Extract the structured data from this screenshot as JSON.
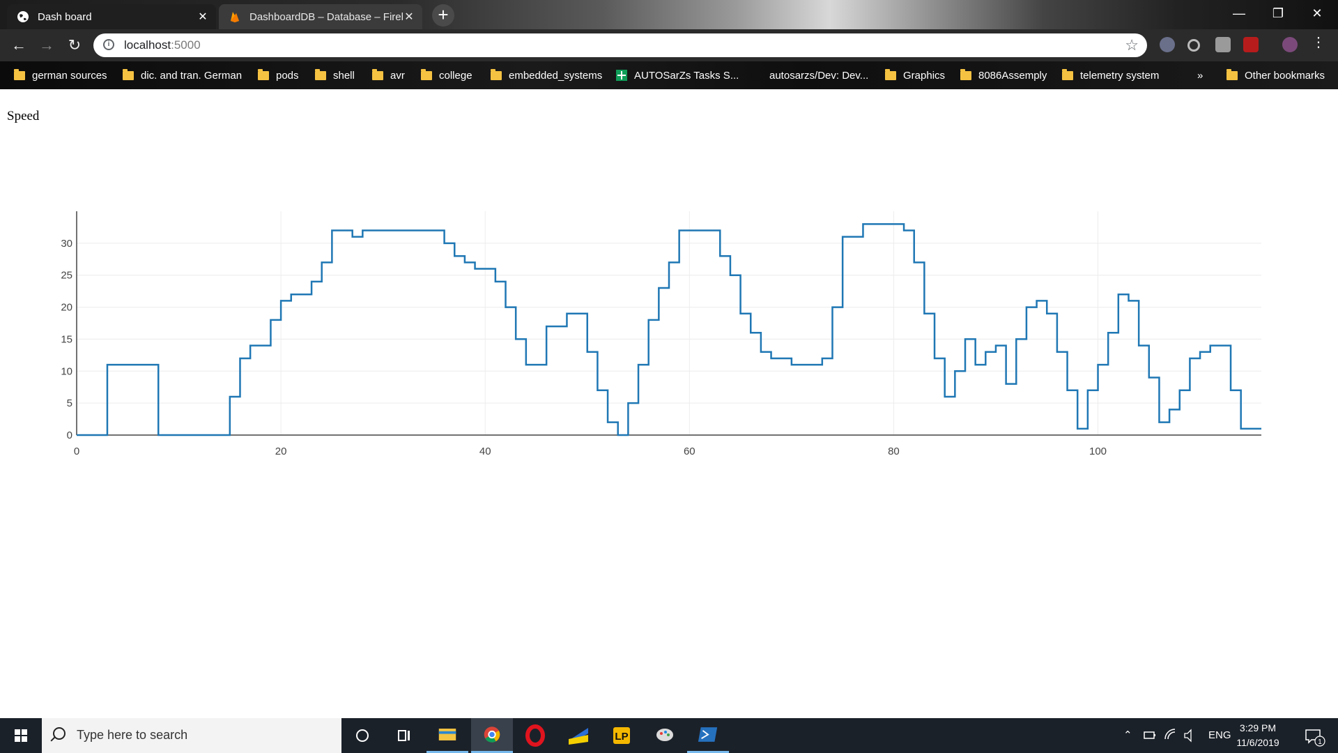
{
  "browser": {
    "tabs": [
      {
        "title": "Dash board",
        "active": true,
        "icon": "globe-icon"
      },
      {
        "title": "DashboardDB – Database – Fireb",
        "active": false,
        "icon": "firebase-icon"
      }
    ],
    "new_tab_symbol": "+",
    "close_symbol": "✕",
    "window_controls": {
      "minimize": "—",
      "restore": "❐",
      "close": "✕"
    },
    "nav": {
      "back": "←",
      "forward": "→",
      "reload": "↻"
    },
    "address": {
      "host": "localhost",
      "port": ":5000"
    },
    "bookmark_star": "☆",
    "bookmarks": [
      {
        "label": "german sources",
        "icon": "folder-icon"
      },
      {
        "label": "dic. and tran. German",
        "icon": "folder-icon"
      },
      {
        "label": "pods",
        "icon": "folder-icon"
      },
      {
        "label": "shell",
        "icon": "folder-icon"
      },
      {
        "label": "avr",
        "icon": "folder-icon"
      },
      {
        "label": "college",
        "icon": "folder-icon"
      },
      {
        "label": "embedded_systems",
        "icon": "folder-icon"
      },
      {
        "label": "AUTOSarZs Tasks S...",
        "icon": "sheets-icon"
      },
      {
        "label": "autosarzs/Dev: Dev...",
        "icon": "github-icon"
      },
      {
        "label": "Graphics",
        "icon": "folder-icon"
      },
      {
        "label": "8086Assemply",
        "icon": "folder-icon"
      },
      {
        "label": "telemetry system",
        "icon": "folder-icon"
      }
    ],
    "bookmarks_overflow": "»",
    "other_bookmarks": "Other bookmarks"
  },
  "page": {
    "title": "Speed"
  },
  "chart_data": {
    "type": "line",
    "line_shape": "step",
    "color": "#1f77b4",
    "xlim": [
      0,
      116
    ],
    "ylim": [
      0,
      35
    ],
    "xticks": [
      0,
      20,
      40,
      60,
      80,
      100
    ],
    "yticks": [
      0,
      5,
      10,
      15,
      20,
      25,
      30
    ],
    "grid": true,
    "x": [
      0,
      1,
      2,
      3,
      4,
      5,
      6,
      7,
      8,
      9,
      10,
      11,
      12,
      13,
      14,
      15,
      16,
      17,
      18,
      19,
      20,
      21,
      22,
      23,
      24,
      25,
      26,
      27,
      28,
      29,
      30,
      31,
      32,
      33,
      34,
      35,
      36,
      37,
      38,
      39,
      40,
      41,
      42,
      43,
      44,
      45,
      46,
      47,
      48,
      49,
      50,
      51,
      52,
      53,
      54,
      55,
      56,
      57,
      58,
      59,
      60,
      61,
      62,
      63,
      64,
      65,
      66,
      67,
      68,
      69,
      70,
      71,
      72,
      73,
      74,
      75,
      76,
      77,
      78,
      79,
      80,
      81,
      82,
      83,
      84,
      85,
      86,
      87,
      88,
      89,
      90,
      91,
      92,
      93,
      94,
      95,
      96,
      97,
      98,
      99,
      100,
      101,
      102,
      103,
      104,
      105,
      106,
      107,
      108,
      109,
      110,
      111,
      112,
      113,
      114,
      115,
      116
    ],
    "y": [
      0,
      0,
      0,
      11,
      11,
      11,
      11,
      11,
      0,
      0,
      0,
      0,
      0,
      0,
      0,
      6,
      12,
      14,
      14,
      18,
      21,
      22,
      22,
      24,
      27,
      32,
      32,
      31,
      32,
      32,
      32,
      32,
      32,
      32,
      32,
      32,
      30,
      28,
      27,
      26,
      26,
      24,
      20,
      15,
      11,
      11,
      17,
      17,
      19,
      19,
      13,
      7,
      2,
      0,
      5,
      11,
      18,
      23,
      27,
      32,
      32,
      32,
      32,
      28,
      25,
      19,
      16,
      13,
      12,
      12,
      11,
      11,
      11,
      12,
      20,
      31,
      31,
      33,
      33,
      33,
      33,
      32,
      27,
      19,
      12,
      6,
      10,
      15,
      11,
      13,
      14,
      8,
      15,
      20,
      21,
      19,
      13,
      7,
      1,
      7,
      11,
      16,
      22,
      21,
      14,
      9,
      2,
      4,
      7,
      12,
      13,
      14,
      14,
      7,
      1,
      1,
      1
    ]
  },
  "taskbar": {
    "search_placeholder": "Type here to search",
    "apps": [
      "cortana-icon",
      "task-view-icon",
      "file-explorer-icon",
      "chrome-icon",
      "opera-icon",
      "app-stripes-icon",
      "lp-icon",
      "paint-icon",
      "powershell-icon"
    ],
    "language": "ENG",
    "time": "3:29 PM",
    "date": "11/6/2019",
    "notification_count": "1"
  }
}
